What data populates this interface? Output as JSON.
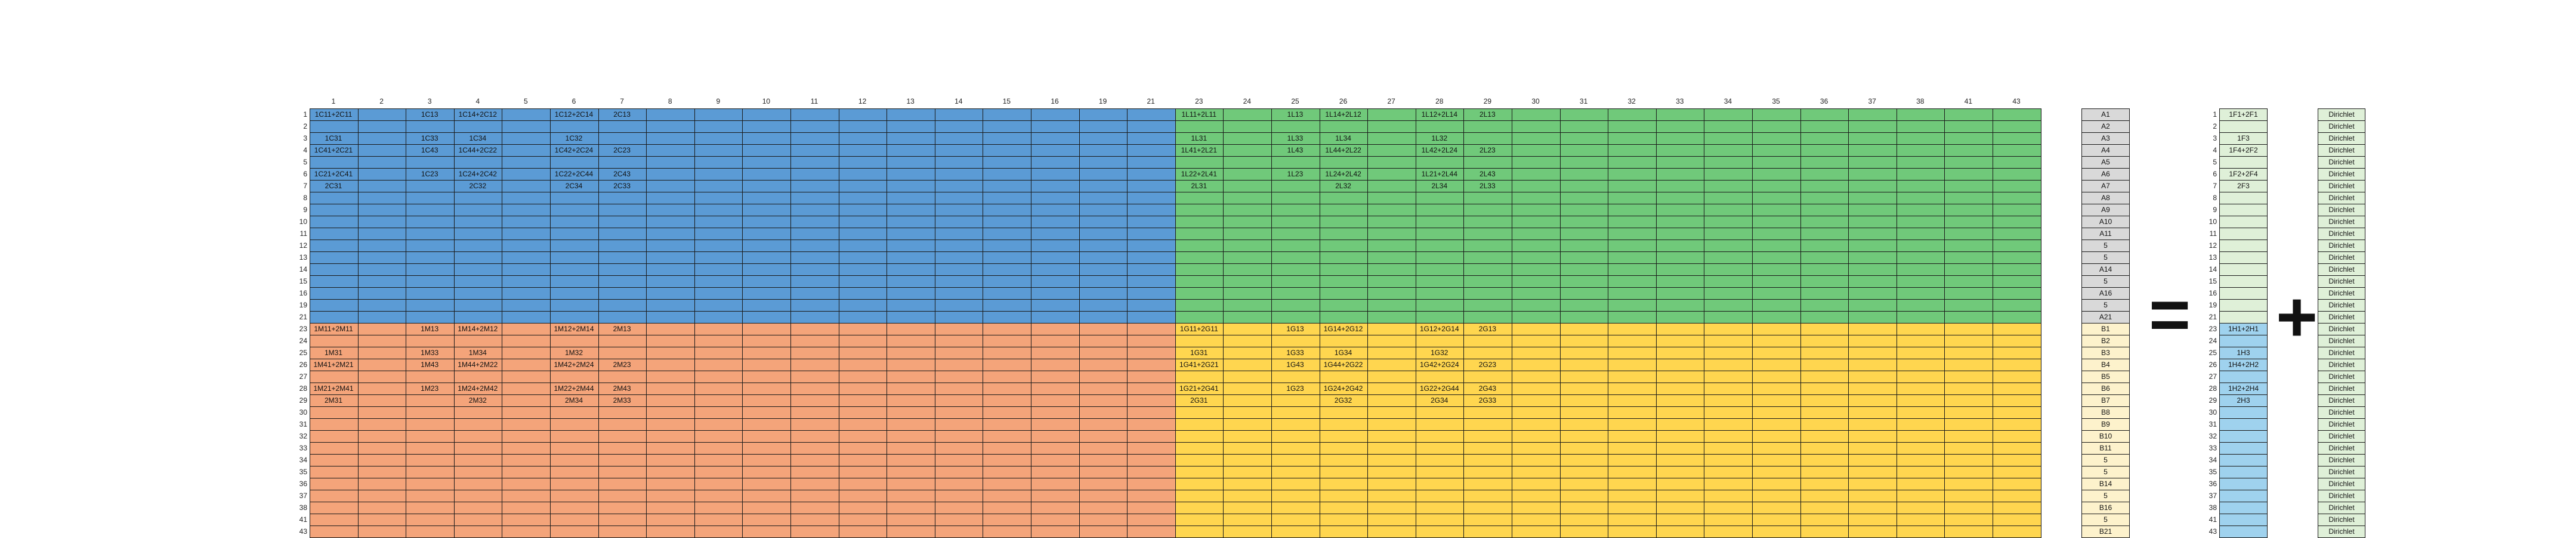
{
  "colors": {
    "blue": "#5b9bd5",
    "green": "#70c97a",
    "orange": "#f4a47a",
    "yellow": "#ffd64f",
    "grid": "#1a1a1a",
    "grey": "#d9d9d9",
    "light_yellow": "#fdf2cc",
    "light_green": "#dff0d8",
    "light_blue": "#9fd2ee"
  },
  "col_headers": [
    "1",
    "2",
    "3",
    "4",
    "5",
    "6",
    "7",
    "8",
    "9",
    "10",
    "11",
    "12",
    "13",
    "14",
    "15",
    "16",
    "19",
    "21",
    "23",
    "24",
    "25",
    "26",
    "27",
    "28",
    "29",
    "30",
    "31",
    "32",
    "33",
    "34",
    "35",
    "36",
    "37",
    "38",
    "41",
    "43"
  ],
  "row_labels": [
    "1",
    "2",
    "3",
    "4",
    "5",
    "6",
    "7",
    "8",
    "9",
    "10",
    "11",
    "12",
    "13",
    "14",
    "15",
    "16",
    "19",
    "21",
    "23",
    "24",
    "25",
    "26",
    "27",
    "28",
    "29",
    "30",
    "31",
    "32",
    "33",
    "34",
    "35",
    "36",
    "37",
    "38",
    "41",
    "43"
  ],
  "cells": [
    {
      "r": 0,
      "c": 0,
      "text": "1C11+2C11"
    },
    {
      "r": 0,
      "c": 2,
      "text": "1C13"
    },
    {
      "r": 0,
      "c": 3,
      "text": "1C14+2C12"
    },
    {
      "r": 0,
      "c": 5,
      "text": "1C12+2C14"
    },
    {
      "r": 0,
      "c": 6,
      "text": "2C13"
    },
    {
      "r": 2,
      "c": 0,
      "text": "1C31"
    },
    {
      "r": 2,
      "c": 2,
      "text": "1C33"
    },
    {
      "r": 2,
      "c": 3,
      "text": "1C34"
    },
    {
      "r": 2,
      "c": 5,
      "text": "1C32"
    },
    {
      "r": 3,
      "c": 0,
      "text": "1C41+2C21"
    },
    {
      "r": 3,
      "c": 2,
      "text": "1C43"
    },
    {
      "r": 3,
      "c": 3,
      "text": "1C44+2C22"
    },
    {
      "r": 3,
      "c": 5,
      "text": "1C42+2C24"
    },
    {
      "r": 3,
      "c": 6,
      "text": "2C23"
    },
    {
      "r": 5,
      "c": 0,
      "text": "1C21+2C41"
    },
    {
      "r": 5,
      "c": 2,
      "text": "1C23"
    },
    {
      "r": 5,
      "c": 3,
      "text": "1C24+2C42"
    },
    {
      "r": 5,
      "c": 5,
      "text": "1C22+2C44"
    },
    {
      "r": 5,
      "c": 6,
      "text": "2C43"
    },
    {
      "r": 6,
      "c": 0,
      "text": "2C31"
    },
    {
      "r": 6,
      "c": 3,
      "text": "2C32"
    },
    {
      "r": 6,
      "c": 5,
      "text": "2C34"
    },
    {
      "r": 6,
      "c": 6,
      "text": "2C33"
    },
    {
      "r": 0,
      "c": 18,
      "text": "1L11+2L11"
    },
    {
      "r": 0,
      "c": 20,
      "text": "1L13"
    },
    {
      "r": 0,
      "c": 21,
      "text": "1L14+2L12"
    },
    {
      "r": 0,
      "c": 23,
      "text": "1L12+2L14"
    },
    {
      "r": 0,
      "c": 24,
      "text": "2L13"
    },
    {
      "r": 2,
      "c": 18,
      "text": "1L31"
    },
    {
      "r": 2,
      "c": 20,
      "text": "1L33"
    },
    {
      "r": 2,
      "c": 21,
      "text": "1L34"
    },
    {
      "r": 2,
      "c": 23,
      "text": "1L32"
    },
    {
      "r": 3,
      "c": 18,
      "text": "1L41+2L21"
    },
    {
      "r": 3,
      "c": 20,
      "text": "1L43"
    },
    {
      "r": 3,
      "c": 21,
      "text": "1L44+2L22"
    },
    {
      "r": 3,
      "c": 23,
      "text": "1L42+2L24"
    },
    {
      "r": 3,
      "c": 24,
      "text": "2L23"
    },
    {
      "r": 5,
      "c": 18,
      "text": "1L22+2L41"
    },
    {
      "r": 5,
      "c": 20,
      "text": "1L23"
    },
    {
      "r": 5,
      "c": 21,
      "text": "1L24+2L42"
    },
    {
      "r": 5,
      "c": 23,
      "text": "1L21+2L44"
    },
    {
      "r": 5,
      "c": 24,
      "text": "2L43"
    },
    {
      "r": 6,
      "c": 18,
      "text": "2L31"
    },
    {
      "r": 6,
      "c": 21,
      "text": "2L32"
    },
    {
      "r": 6,
      "c": 23,
      "text": "2L34"
    },
    {
      "r": 6,
      "c": 24,
      "text": "2L33"
    },
    {
      "r": 18,
      "c": 0,
      "text": "1M11+2M11"
    },
    {
      "r": 18,
      "c": 2,
      "text": "1M13"
    },
    {
      "r": 18,
      "c": 3,
      "text": "1M14+2M12"
    },
    {
      "r": 18,
      "c": 5,
      "text": "1M12+2M14"
    },
    {
      "r": 18,
      "c": 6,
      "text": "2M13"
    },
    {
      "r": 20,
      "c": 0,
      "text": "1M31"
    },
    {
      "r": 20,
      "c": 2,
      "text": "1M33"
    },
    {
      "r": 20,
      "c": 3,
      "text": "1M34"
    },
    {
      "r": 20,
      "c": 5,
      "text": "1M32"
    },
    {
      "r": 21,
      "c": 0,
      "text": "1M41+2M21"
    },
    {
      "r": 21,
      "c": 2,
      "text": "1M43"
    },
    {
      "r": 21,
      "c": 3,
      "text": "1M44+2M22"
    },
    {
      "r": 21,
      "c": 5,
      "text": "1M42+2M24"
    },
    {
      "r": 21,
      "c": 6,
      "text": "2M23"
    },
    {
      "r": 23,
      "c": 0,
      "text": "1M21+2M41"
    },
    {
      "r": 23,
      "c": 2,
      "text": "1M23"
    },
    {
      "r": 23,
      "c": 3,
      "text": "1M24+2M42"
    },
    {
      "r": 23,
      "c": 5,
      "text": "1M22+2M44"
    },
    {
      "r": 23,
      "c": 6,
      "text": "2M43"
    },
    {
      "r": 24,
      "c": 0,
      "text": "2M31"
    },
    {
      "r": 24,
      "c": 3,
      "text": "2M32"
    },
    {
      "r": 24,
      "c": 5,
      "text": "2M34"
    },
    {
      "r": 24,
      "c": 6,
      "text": "2M33"
    },
    {
      "r": 18,
      "c": 18,
      "text": "1G11+2G11"
    },
    {
      "r": 18,
      "c": 20,
      "text": "1G13"
    },
    {
      "r": 18,
      "c": 21,
      "text": "1G14+2G12"
    },
    {
      "r": 18,
      "c": 23,
      "text": "1G12+2G14"
    },
    {
      "r": 18,
      "c": 24,
      "text": "2G13"
    },
    {
      "r": 20,
      "c": 18,
      "text": "1G31"
    },
    {
      "r": 20,
      "c": 20,
      "text": "1G33"
    },
    {
      "r": 20,
      "c": 21,
      "text": "1G34"
    },
    {
      "r": 20,
      "c": 23,
      "text": "1G32"
    },
    {
      "r": 21,
      "c": 18,
      "text": "1G41+2G21"
    },
    {
      "r": 21,
      "c": 20,
      "text": "1G43"
    },
    {
      "r": 21,
      "c": 21,
      "text": "1G44+2G22"
    },
    {
      "r": 21,
      "c": 23,
      "text": "1G42+2G24"
    },
    {
      "r": 21,
      "c": 24,
      "text": "2G23"
    },
    {
      "r": 23,
      "c": 18,
      "text": "1G21+2G41"
    },
    {
      "r": 23,
      "c": 20,
      "text": "1G23"
    },
    {
      "r": 23,
      "c": 21,
      "text": "1G24+2G42"
    },
    {
      "r": 23,
      "c": 23,
      "text": "1G22+2G44"
    },
    {
      "r": 23,
      "c": 24,
      "text": "2G43"
    },
    {
      "r": 24,
      "c": 18,
      "text": "2G31"
    },
    {
      "r": 24,
      "c": 21,
      "text": "2G32"
    },
    {
      "r": 24,
      "c": 23,
      "text": "2G34"
    },
    {
      "r": 24,
      "c": 24,
      "text": "2G33"
    }
  ],
  "vector_a": [
    "A1",
    "A2",
    "A3",
    "A4",
    "A5",
    "A6",
    "A7",
    "A8",
    "A9",
    "A10",
    "A11",
    "5",
    "5",
    "A14",
    "5",
    "A16",
    "5",
    "A21",
    "B1",
    "B2",
    "B3",
    "B4",
    "B5",
    "B6",
    "B7",
    "B8",
    "B9",
    "B10",
    "B11",
    "5",
    "5",
    "B14",
    "5",
    "B16",
    "5",
    "B21"
  ],
  "operators": {
    "equals": "=",
    "plus": "+"
  },
  "vector_f": [
    "1F1+2F1",
    "",
    "1F3",
    "1F4+2F2",
    "",
    "1F2+2F4",
    "2F3",
    "",
    "",
    "",
    "",
    "",
    "",
    "",
    "",
    "",
    "",
    "",
    "1H1+2H1",
    "",
    "1H3",
    "1H4+2H2",
    "",
    "1H2+2H4",
    "2H3",
    "",
    "",
    "",
    "",
    "",
    "",
    "",
    "",
    "",
    "",
    ""
  ],
  "boundary": [
    "Dirichlet",
    "Dirichlet",
    "Dirichlet",
    "Dirichlet",
    "Dirichlet",
    "Dirichlet",
    "Dirichlet",
    "Dirichlet",
    "Dirichlet",
    "Dirichlet",
    "Dirichlet",
    "Dirichlet",
    "Dirichlet",
    "Dirichlet",
    "Dirichlet",
    "Dirichlet",
    "Dirichlet",
    "Dirichlet",
    "Dirichlet",
    "Dirichlet",
    "Dirichlet",
    "Dirichlet",
    "Dirichlet",
    "Dirichlet",
    "Dirichlet",
    "Dirichlet",
    "Dirichlet",
    "Dirichlet",
    "Dirichlet",
    "Dirichlet",
    "Dirichlet",
    "Dirichlet",
    "Dirichlet",
    "Dirichlet",
    "Dirichlet",
    "Dirichlet"
  ]
}
